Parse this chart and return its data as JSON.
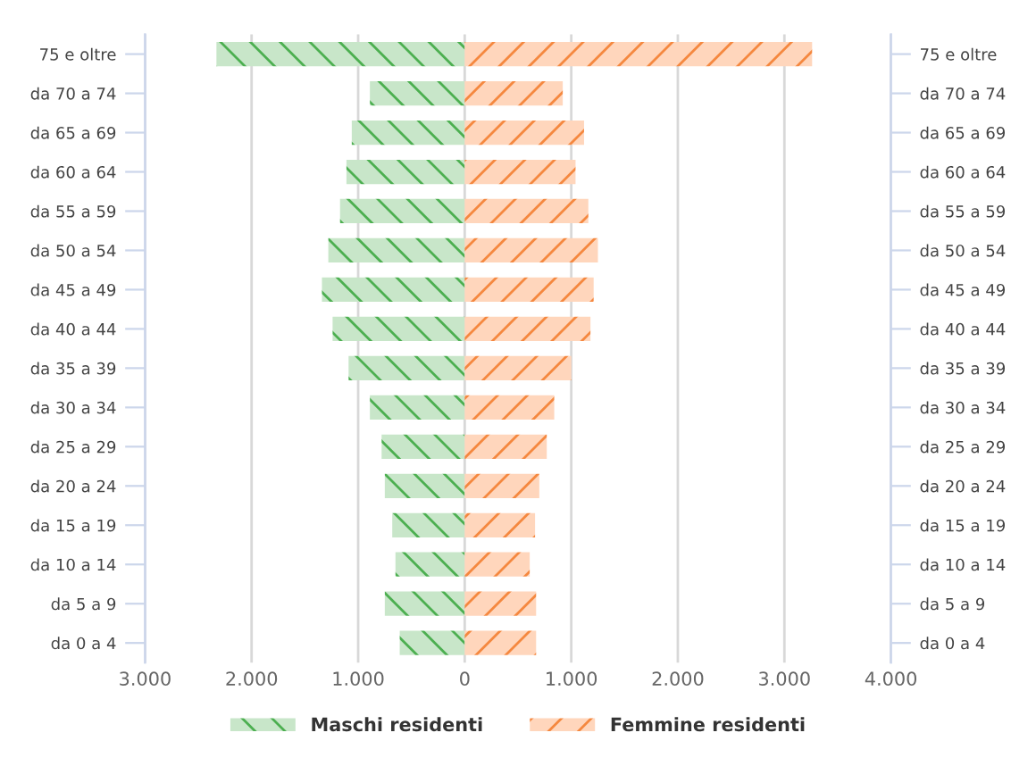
{
  "chart_data": {
    "type": "bar",
    "orientation": "horizontal",
    "categories": [
      "75 e oltre",
      "da 70 a 74",
      "da 65 a 69",
      "da 60 a 64",
      "da 55 a 59",
      "da 50 a 54",
      "da 45 a 49",
      "da 40 a 44",
      "da 35 a 39",
      "da 30 a 34",
      "da 25 a 29",
      "da 20 a 24",
      "da 15 a 19",
      "da 10 a 14",
      "da 5 a 9",
      "da 0 a 4"
    ],
    "series": [
      {
        "name": "Maschi residenti",
        "color": "#c8e6c9",
        "values": [
          -2330,
          -890,
          -1060,
          -1110,
          -1170,
          -1280,
          -1340,
          -1240,
          -1090,
          -890,
          -780,
          -750,
          -680,
          -650,
          -750,
          -610
        ]
      },
      {
        "name": "Femmine residenti",
        "color": "#ffd6bc",
        "values": [
          3260,
          920,
          1120,
          1040,
          1160,
          1250,
          1210,
          1180,
          1000,
          840,
          770,
          700,
          660,
          610,
          670,
          670
        ]
      }
    ],
    "stacked": true,
    "xlim": [
      -3000,
      4000
    ],
    "xticks": [
      {
        "value": -3000,
        "label": "3.000"
      },
      {
        "value": -2000,
        "label": "2.000"
      },
      {
        "value": -1000,
        "label": "1.000"
      },
      0,
      {
        "value": 1000,
        "label": "1.000"
      },
      {
        "value": 2000,
        "label": "2.000"
      },
      {
        "value": 3000,
        "label": "3.000"
      },
      {
        "value": 4000,
        "label": "4.000"
      }
    ],
    "grid": "x",
    "legend": "bottom"
  }
}
